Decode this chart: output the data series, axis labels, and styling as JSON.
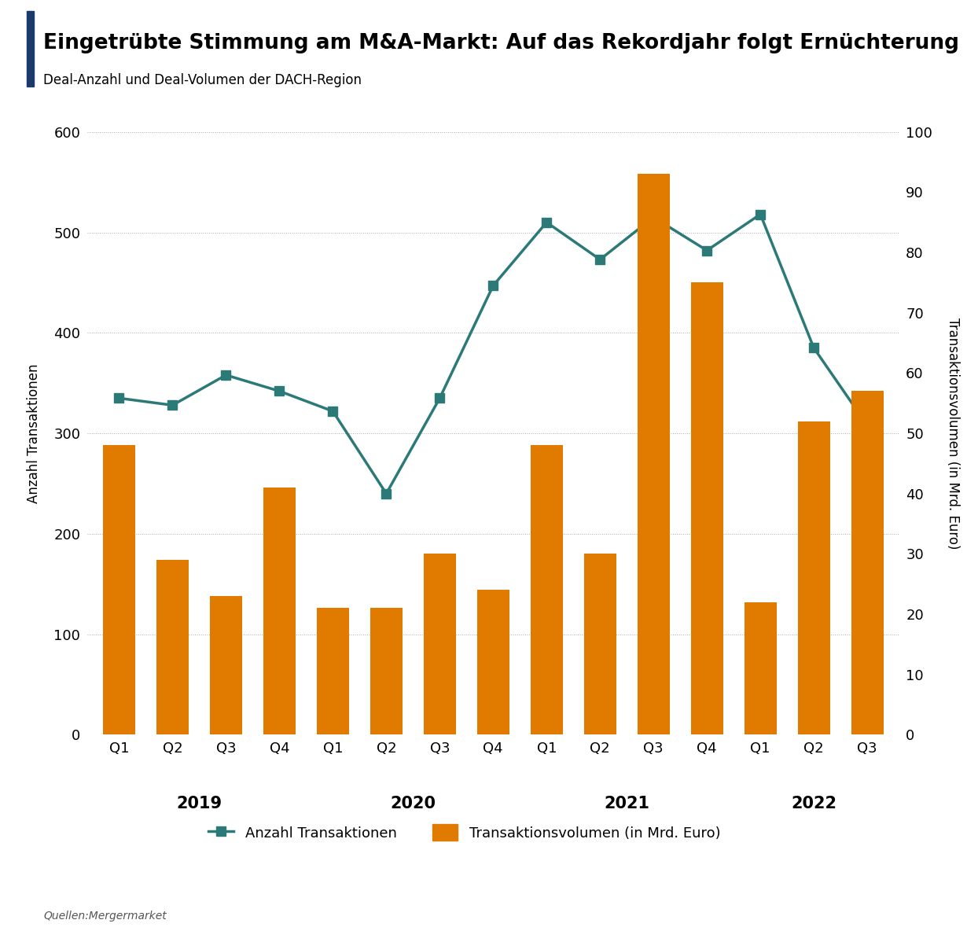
{
  "title": "Eingetrübte Stimmung am M&A-Markt: Auf das Rekordjahr folgt Ernüchterung",
  "subtitle": "Deal-Anzahl und Deal-Volumen der DACH-Region",
  "source": "Quellen:Mergermarket",
  "quarters": [
    "Q1",
    "Q2",
    "Q3",
    "Q4",
    "Q1",
    "Q2",
    "Q3",
    "Q4",
    "Q1",
    "Q2",
    "Q3",
    "Q4",
    "Q1",
    "Q2",
    "Q3"
  ],
  "years": [
    "2019",
    "2020",
    "2021",
    "2022"
  ],
  "year_centers": [
    1.5,
    5.5,
    9.5,
    13.0
  ],
  "line_values": [
    335,
    328,
    358,
    342,
    322,
    240,
    335,
    447,
    510,
    473,
    515,
    482,
    518,
    385,
    308
  ],
  "bar_values": [
    48,
    29,
    23,
    41,
    21,
    21,
    30,
    24,
    48,
    30,
    93,
    75,
    22,
    52,
    57
  ],
  "bar_color": "#E07B00",
  "line_color": "#2B7A78",
  "line_marker": "s",
  "ylabel_left": "Anzahl Transaktionen",
  "ylabel_right": "Transaktionsvolumen (in Mrd. Euro)",
  "ylim_left": [
    0,
    600
  ],
  "ylim_right": [
    0,
    100
  ],
  "yticks_left": [
    0,
    100,
    200,
    300,
    400,
    500,
    600
  ],
  "yticks_right": [
    0,
    10,
    20,
    30,
    40,
    50,
    60,
    70,
    80,
    90,
    100
  ],
  "background_color": "#FFFFFF",
  "title_color": "#000000",
  "legend_line_label": "Anzahl Transaktionen",
  "legend_bar_label": "Transaktionsvolumen (in Mrd. Euro)",
  "title_bar_color": "#1A3A6B",
  "grid_color": "#AAAAAA",
  "grid_linestyle": ":",
  "grid_linewidth": 0.7,
  "bar_width": 0.6,
  "line_linewidth": 2.5,
  "marker_size": 9,
  "title_fontsize": 19,
  "subtitle_fontsize": 12,
  "axis_label_fontsize": 12,
  "tick_fontsize": 13,
  "year_fontsize": 15,
  "legend_fontsize": 13,
  "source_fontsize": 10
}
